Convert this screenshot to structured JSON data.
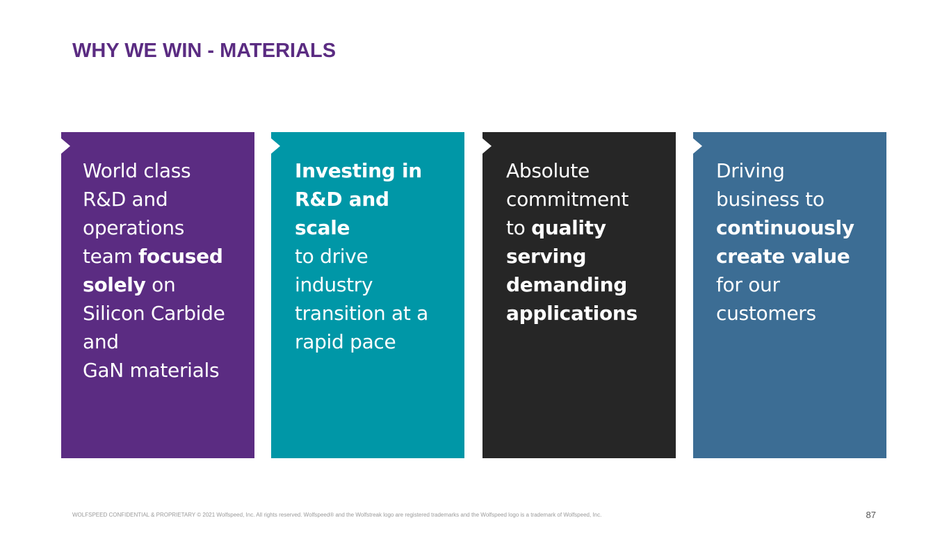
{
  "slide": {
    "title": "WHY WE WIN - MATERIALS",
    "page_number": "87"
  },
  "cards": [
    {
      "color": "#5b2c82",
      "lines": [
        [
          {
            "t": "World class",
            "b": false
          }
        ],
        [
          {
            "t": "R&D and",
            "b": false
          }
        ],
        [
          {
            "t": "operations",
            "b": false
          }
        ],
        [
          {
            "t": "team ",
            "b": false
          },
          {
            "t": "focused",
            "b": true
          }
        ],
        [
          {
            "t": "solely",
            "b": true
          },
          {
            "t": " on",
            "b": false
          }
        ],
        [
          {
            "t": "Silicon Carbide",
            "b": false
          }
        ],
        [
          {
            "t": "and",
            "b": false
          }
        ],
        [
          {
            "t": "GaN materials",
            "b": false
          }
        ]
      ]
    },
    {
      "color": "#0097a7",
      "lines": [
        [
          {
            "t": "Investing in",
            "b": true
          }
        ],
        [
          {
            "t": "R&D and scale",
            "b": true
          }
        ],
        [
          {
            "t": "to drive",
            "b": false
          }
        ],
        [
          {
            "t": "industry",
            "b": false
          }
        ],
        [
          {
            "t": "transition at a",
            "b": false
          }
        ],
        [
          {
            "t": "rapid pace",
            "b": false
          }
        ]
      ]
    },
    {
      "color": "#262626",
      "lines": [
        [
          {
            "t": "Absolute",
            "b": false
          }
        ],
        [
          {
            "t": "commitment",
            "b": false
          }
        ],
        [
          {
            "t": "to ",
            "b": false
          },
          {
            "t": "quality",
            "b": true
          }
        ],
        [
          {
            "t": "serving",
            "b": true
          }
        ],
        [
          {
            "t": "demanding",
            "b": true
          }
        ],
        [
          {
            "t": "applications",
            "b": true
          }
        ]
      ]
    },
    {
      "color": "#3c6d94",
      "lines": [
        [
          {
            "t": "Driving",
            "b": false
          }
        ],
        [
          {
            "t": "business to",
            "b": false
          }
        ],
        [
          {
            "t": "continuously",
            "b": true
          }
        ],
        [
          {
            "t": "create value",
            "b": true
          }
        ],
        [
          {
            "t": "for our",
            "b": false
          }
        ],
        [
          {
            "t": "customers",
            "b": false
          }
        ]
      ]
    }
  ],
  "footer": {
    "legal": "WOLFSPEED CONFIDENTIAL & PROPRIETARY © 2021 Wolfspeed, Inc. All rights reserved. Wolfspeed® and the Wolfstreak logo are registered trademarks and the Wolfspeed logo is a trademark of Wolfspeed, Inc."
  }
}
